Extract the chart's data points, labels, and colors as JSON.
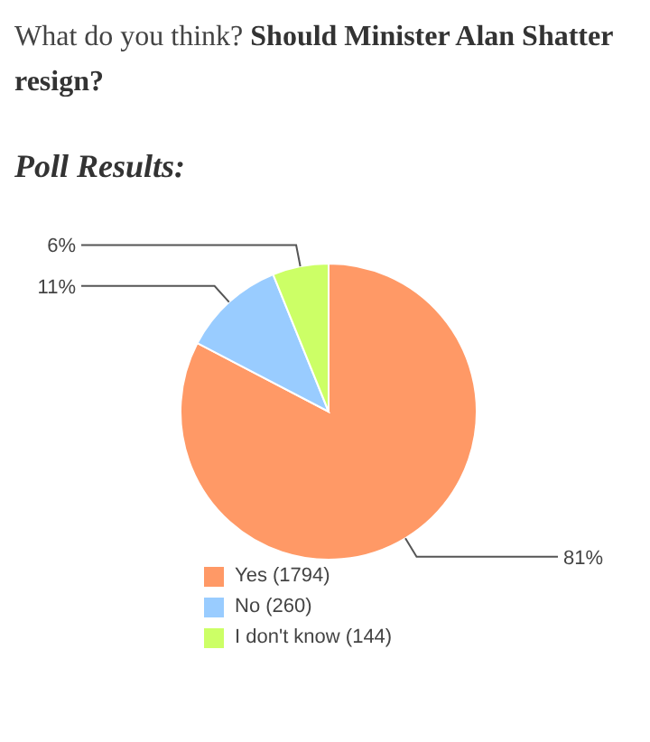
{
  "chart_data": {
    "type": "pie",
    "title": "What do you think?",
    "subtitle": "Should Minister Alan Shatter resign?",
    "annotations": [
      "Poll Results:"
    ],
    "categories": [
      "Yes (1794)",
      "No (260)",
      "I don't know (144)"
    ],
    "values": [
      81,
      11,
      6
    ],
    "value_labels": [
      "81%",
      "11%",
      "6%"
    ],
    "colors": [
      "#ff9966",
      "#99ccff",
      "#ccff66"
    ],
    "legend": "bottom"
  }
}
